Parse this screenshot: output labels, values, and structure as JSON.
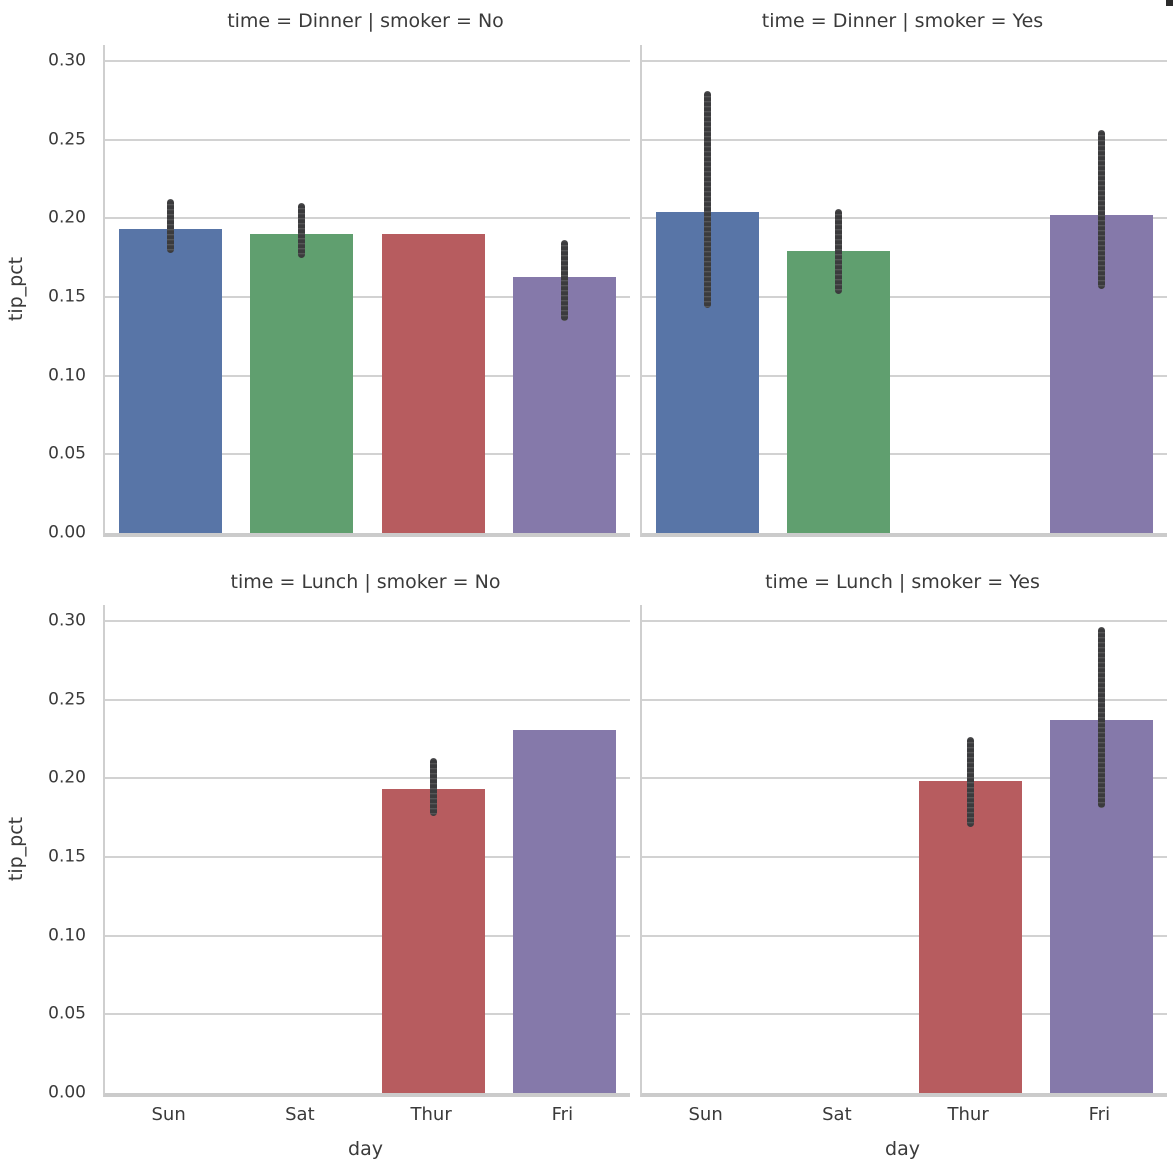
{
  "chart_data": {
    "type": "bar",
    "facet_note": "2x2 facet grid (seaborn catplot style): rows = time, cols = smoker",
    "categories": [
      "Sun",
      "Sat",
      "Thur",
      "Fri"
    ],
    "colors": {
      "Sun": "#5875a7",
      "Sat": "#609f6f",
      "Thur": "#b75c5f",
      "Fri": "#8579aa"
    },
    "errorbar_color": "#3b3b3d",
    "grid_color": "#d2d2d2",
    "xlabel": "day",
    "ylabel": "tip_pct",
    "ylim": [
      0,
      0.3102
    ],
    "ytick_values": [
      0,
      0.05,
      0.1,
      0.15,
      0.2,
      0.25,
      0.3
    ],
    "ytick_labels": [
      "0.00",
      "0.05",
      "0.10",
      "0.15",
      "0.20",
      "0.25",
      "0.30"
    ],
    "grid": true,
    "panels": [
      {
        "title": "time = Dinner | smoker = No",
        "bars": [
          {
            "category": "Sun",
            "value": 0.193,
            "ci": [
              0.178,
              0.212
            ]
          },
          {
            "category": "Sat",
            "value": 0.19,
            "ci": [
              0.175,
              0.21
            ]
          },
          {
            "category": "Thur",
            "value": 0.19,
            "ci": null
          },
          {
            "category": "Fri",
            "value": 0.163,
            "ci": [
              0.135,
              0.186
            ]
          }
        ]
      },
      {
        "title": "time = Dinner | smoker = Yes",
        "bars": [
          {
            "category": "Sun",
            "value": 0.204,
            "ci": [
              0.143,
              0.281
            ]
          },
          {
            "category": "Sat",
            "value": 0.179,
            "ci": [
              0.152,
              0.206
            ]
          },
          {
            "category": "Fri",
            "value": 0.202,
            "ci": [
              0.155,
              0.256
            ]
          }
        ]
      },
      {
        "title": "time = Lunch | smoker = No",
        "bars": [
          {
            "category": "Thur",
            "value": 0.193,
            "ci": [
              0.176,
              0.213
            ]
          },
          {
            "category": "Fri",
            "value": 0.231,
            "ci": null
          }
        ]
      },
      {
        "title": "time = Lunch | smoker = Yes",
        "bars": [
          {
            "category": "Thur",
            "value": 0.198,
            "ci": [
              0.169,
              0.226
            ]
          },
          {
            "category": "Fri",
            "value": 0.237,
            "ci": [
              0.181,
              0.296
            ]
          }
        ]
      }
    ]
  }
}
